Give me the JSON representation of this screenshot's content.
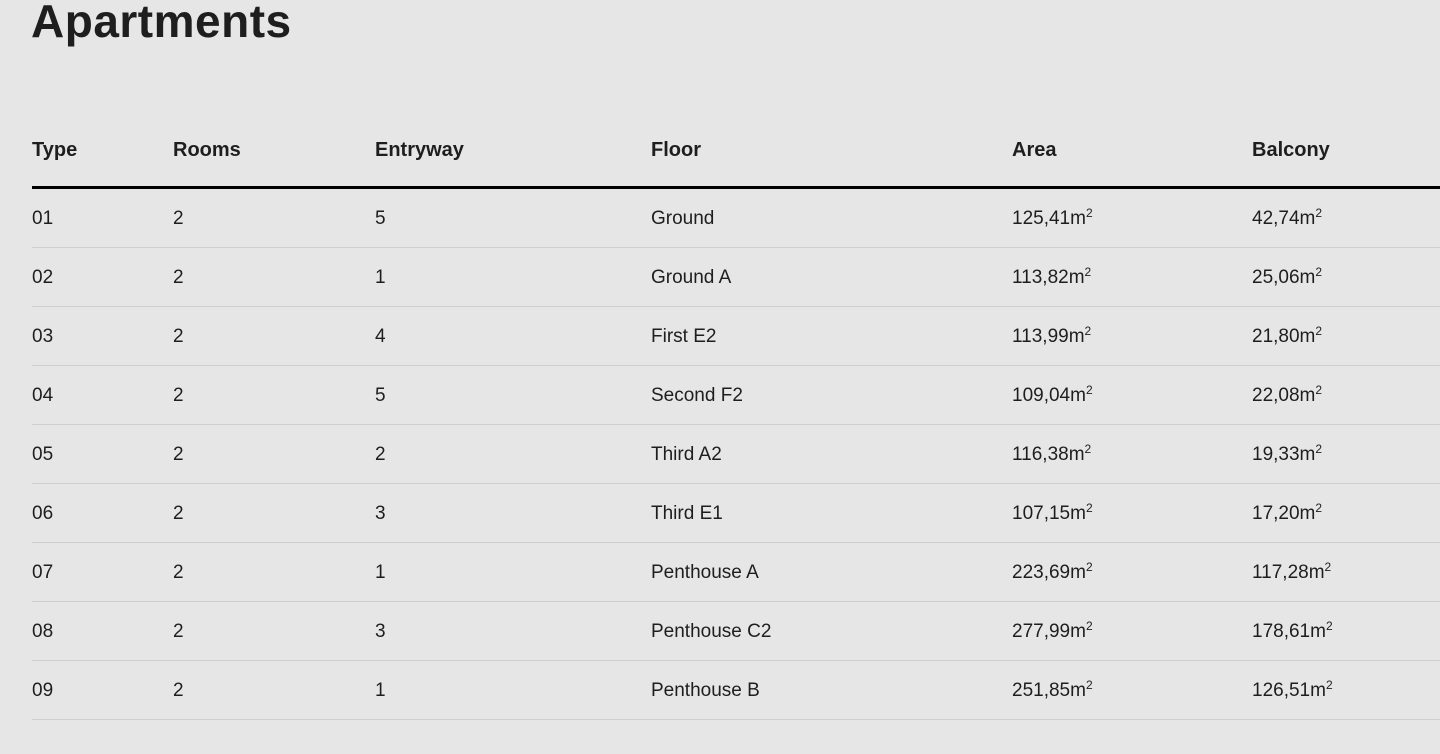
{
  "page": {
    "title": "Apartments"
  },
  "table": {
    "columns": [
      "Type",
      "Rooms",
      "Entryway",
      "Floor",
      "Area",
      "Balcony"
    ],
    "unit": "m",
    "unit_exponent": "2",
    "rows": [
      {
        "type": "01",
        "rooms": "2",
        "entryway": "5",
        "floor": "Ground",
        "area": "125,41",
        "balcony": "42,74"
      },
      {
        "type": "02",
        "rooms": "2",
        "entryway": "1",
        "floor": "Ground A",
        "area": "113,82",
        "balcony": "25,06"
      },
      {
        "type": "03",
        "rooms": "2",
        "entryway": "4",
        "floor": "First E2",
        "area": "113,99",
        "balcony": "21,80"
      },
      {
        "type": "04",
        "rooms": "2",
        "entryway": "5",
        "floor": "Second F2",
        "area": "109,04",
        "balcony": "22,08"
      },
      {
        "type": "05",
        "rooms": "2",
        "entryway": "2",
        "floor": "Third A2",
        "area": "116,38",
        "balcony": "19,33"
      },
      {
        "type": "06",
        "rooms": "2",
        "entryway": "3",
        "floor": "Third E1",
        "area": "107,15",
        "balcony": "17,20"
      },
      {
        "type": "07",
        "rooms": "2",
        "entryway": "1",
        "floor": "Penthouse A",
        "area": "223,69",
        "balcony": "117,28"
      },
      {
        "type": "08",
        "rooms": "2",
        "entryway": "3",
        "floor": "Penthouse C2",
        "area": "277,99",
        "balcony": "178,61"
      },
      {
        "type": "09",
        "rooms": "2",
        "entryway": "1",
        "floor": "Penthouse B",
        "area": "251,85",
        "balcony": "126,51"
      }
    ]
  }
}
